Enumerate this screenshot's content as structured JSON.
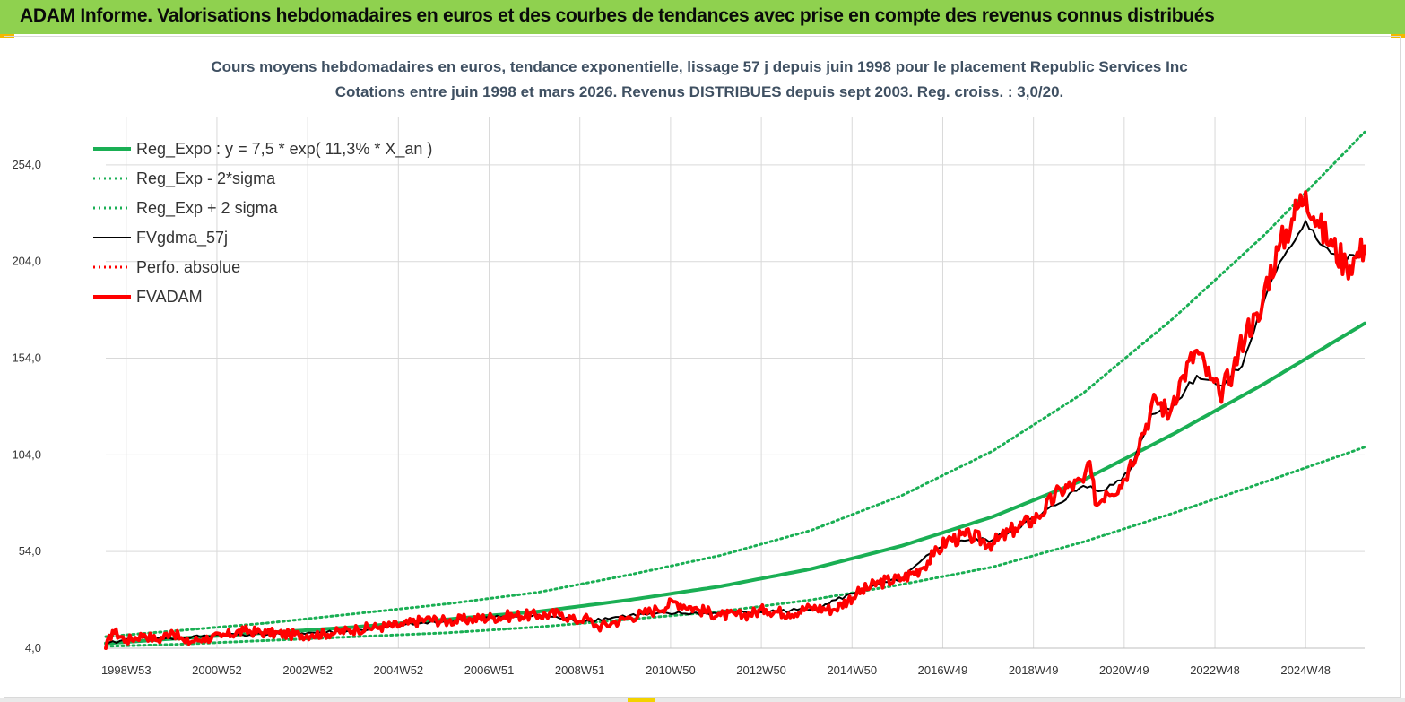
{
  "header": {
    "title": "ADAM Informe. Valorisations hebdomadaires en euros et des courbes de tendances avec prise en compte des revenus connus distribués"
  },
  "colors": {
    "header_bg": "#8fd14f",
    "accent": "#f3b800",
    "reg": "#1aaf54",
    "red": "#ff0000",
    "black": "#000000"
  },
  "chart_data": {
    "type": "line",
    "title": "Cours moyens hebdomadaires en euros, tendance exponentielle, lissage 57 j depuis juin 1998 pour le placement Republic Services Inc",
    "subtitle": "Cotations entre juin 1998 et mars 2026. Revenus DISTRIBUES depuis sept 2003. Reg. croiss. : 3,0/20.",
    "x_range": [
      1998.45,
      2026.2
    ],
    "ylim": [
      4,
      279
    ],
    "y_ticks": [
      {
        "value": 4,
        "label": "4,0"
      },
      {
        "value": 54,
        "label": "54,0"
      },
      {
        "value": 104,
        "label": "104,0"
      },
      {
        "value": 154,
        "label": "154,0"
      },
      {
        "value": 204,
        "label": "204,0"
      },
      {
        "value": 254,
        "label": "254,0"
      }
    ],
    "x_ticks": [
      {
        "value": 1998.9,
        "label": "1998W53"
      },
      {
        "value": 2000.9,
        "label": "2000W52"
      },
      {
        "value": 2002.9,
        "label": "2002W52"
      },
      {
        "value": 2004.9,
        "label": "2004W52"
      },
      {
        "value": 2006.9,
        "label": "2006W51"
      },
      {
        "value": 2008.9,
        "label": "2008W51"
      },
      {
        "value": 2010.9,
        "label": "2010W50"
      },
      {
        "value": 2012.9,
        "label": "2012W50"
      },
      {
        "value": 2014.9,
        "label": "2014W50"
      },
      {
        "value": 2016.9,
        "label": "2016W49"
      },
      {
        "value": 2018.9,
        "label": "2018W49"
      },
      {
        "value": 2020.9,
        "label": "2020W49"
      },
      {
        "value": 2022.9,
        "label": "2022W48"
      },
      {
        "value": 2024.9,
        "label": "2024W48"
      }
    ],
    "legend": [
      {
        "name": "Reg_Expo : y = 7,5 * exp( 11,3% *  X_an )",
        "color": "#1aaf54",
        "style": "solid-thick"
      },
      {
        "name": "Reg_Exp - 2*sigma",
        "color": "#1aaf54",
        "style": "dotted"
      },
      {
        "name": "Reg_Exp + 2 sigma",
        "color": "#1aaf54",
        "style": "dotted"
      },
      {
        "name": "FVgdma_57j",
        "color": "#000000",
        "style": "solid"
      },
      {
        "name": "Perfo. absolue",
        "color": "#ff0000",
        "style": "dotted"
      },
      {
        "name": "FVADAM",
        "color": "#ff0000",
        "style": "solid-thick"
      }
    ],
    "series": [
      {
        "name": "Reg_Expo : y = 7,5 * exp( 11,3% *  X_an )",
        "x": [
          1998.45,
          2000,
          2002,
          2004,
          2006,
          2008,
          2010,
          2012,
          2014,
          2016,
          2018,
          2020,
          2022,
          2024,
          2026.2
        ],
        "y": [
          6.5,
          9,
          12,
          15,
          19,
          23,
          29,
          36,
          45,
          57,
          72,
          91,
          115,
          141,
          172
        ]
      },
      {
        "name": "Reg_Exp - 2*sigma",
        "x": [
          1998.45,
          2000,
          2002,
          2004,
          2006,
          2008,
          2010,
          2012,
          2014,
          2016,
          2018,
          2020,
          2022,
          2024,
          2026.2
        ],
        "y": [
          5,
          6,
          8,
          10,
          12,
          15,
          19,
          23,
          29,
          37,
          46,
          59,
          74,
          90,
          108
        ]
      },
      {
        "name": "Reg_Exp + 2 sigma",
        "x": [
          1998.45,
          2000,
          2002,
          2004,
          2006,
          2008,
          2010,
          2012,
          2014,
          2016,
          2018,
          2020,
          2022,
          2024,
          2026.2
        ],
        "y": [
          10,
          13,
          17,
          22,
          27,
          33,
          42,
          52,
          65,
          83,
          106,
          136,
          175,
          218,
          271
        ]
      },
      {
        "name": "FVADAM",
        "x": [
          1998.45,
          1998.6,
          1998.9,
          1999.3,
          1999.6,
          1999.9,
          2000.2,
          2000.6,
          2001.0,
          2001.5,
          2002.0,
          2002.5,
          2003.0,
          2003.5,
          2004.0,
          2004.5,
          2005.0,
          2005.5,
          2006.0,
          2006.5,
          2007.0,
          2007.5,
          2008.0,
          2008.5,
          2008.8,
          2009.0,
          2009.3,
          2009.6,
          2010.0,
          2010.3,
          2010.6,
          2011.0,
          2011.5,
          2012.0,
          2012.5,
          2013.0,
          2013.5,
          2014.0,
          2014.5,
          2015.0,
          2015.5,
          2016.0,
          2016.4,
          2016.7,
          2017.0,
          2017.5,
          2018.0,
          2018.5,
          2019.0,
          2019.5,
          2020.0,
          2020.1,
          2020.3,
          2020.5,
          2020.8,
          2021.0,
          2021.3,
          2021.6,
          2021.9,
          2022.0,
          2022.2,
          2022.5,
          2022.8,
          2023.0,
          2023.3,
          2023.6,
          2023.9,
          2024.0,
          2024.3,
          2024.6,
          2024.9,
          2025.2,
          2025.5,
          2025.8,
          2026.0,
          2026.2
        ],
        "y": [
          4,
          13,
          8,
          11,
          8,
          13,
          7,
          9,
          10,
          13,
          12,
          11,
          11,
          12,
          14,
          15,
          16,
          19,
          18,
          19,
          20,
          21,
          21,
          22,
          18,
          20,
          15,
          17,
          20,
          22,
          24,
          28,
          24,
          21,
          21,
          24,
          22,
          25,
          24,
          32,
          38,
          40,
          45,
          52,
          60,
          62,
          58,
          66,
          72,
          86,
          90,
          100,
          78,
          85,
          88,
          97,
          115,
          133,
          125,
          134,
          145,
          158,
          143,
          135,
          148,
          170,
          175,
          191,
          210,
          226,
          240,
          222,
          212,
          202,
          206,
          212
        ]
      },
      {
        "name": "FVgdma_57j",
        "x": [
          1998.45,
          1999.0,
          2000.0,
          2001.0,
          2002.0,
          2003.0,
          2004.0,
          2005.0,
          2006.0,
          2007.0,
          2008.0,
          2009.0,
          2010.0,
          2011.0,
          2012.0,
          2013.0,
          2014.0,
          2015.0,
          2016.0,
          2017.0,
          2018.0,
          2019.0,
          2020.0,
          2020.5,
          2021.0,
          2021.5,
          2022.0,
          2022.5,
          2023.0,
          2023.5,
          2024.0,
          2024.5,
          2024.9,
          2025.3,
          2025.7,
          2026.2
        ],
        "y": [
          6,
          9,
          9,
          11,
          11,
          12,
          13,
          16,
          18,
          20,
          21,
          18,
          21,
          22,
          22,
          23,
          24,
          33,
          40,
          60,
          60,
          72,
          88,
          86,
          95,
          125,
          130,
          145,
          140,
          150,
          185,
          210,
          225,
          212,
          204,
          208
        ]
      }
    ]
  }
}
